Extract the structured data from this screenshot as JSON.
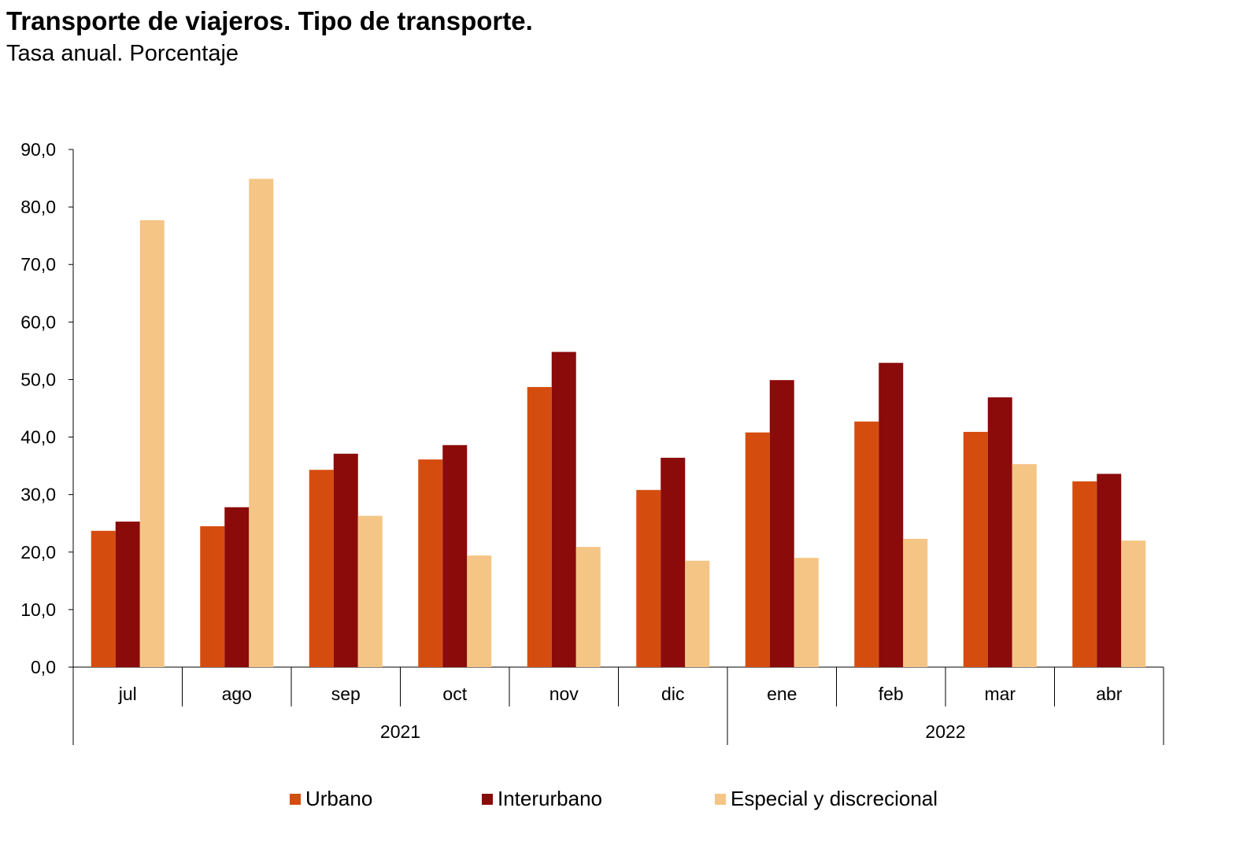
{
  "title": "Transporte de viajeros. Tipo de transporte.",
  "subtitle": "Tasa anual. Porcentaje",
  "chart_data": {
    "type": "bar",
    "title": "Transporte de viajeros. Tipo de transporte.",
    "subtitle": "Tasa anual. Porcentaje",
    "categories": [
      "jul",
      "ago",
      "sep",
      "oct",
      "nov",
      "dic",
      "ene",
      "feb",
      "mar",
      "abr"
    ],
    "groups": [
      {
        "label": "2021",
        "count": 6
      },
      {
        "label": "2022",
        "count": 4
      }
    ],
    "ylim": [
      0,
      90
    ],
    "yticks": [
      "0,0",
      "10,0",
      "20,0",
      "30,0",
      "40,0",
      "50,0",
      "60,0",
      "70,0",
      "80,0",
      "90,0"
    ],
    "grid": false,
    "legend": "bottom",
    "series": [
      {
        "name": "Urbano",
        "color": "#D54D0E",
        "values": [
          23.7,
          24.5,
          34.3,
          36.1,
          48.7,
          30.8,
          40.8,
          42.7,
          40.9,
          32.3
        ]
      },
      {
        "name": "Interurbano",
        "color": "#8B0A0A",
        "values": [
          25.3,
          27.8,
          37.1,
          38.6,
          54.8,
          36.4,
          49.9,
          52.9,
          46.9,
          33.6
        ]
      },
      {
        "name": "Especial y discrecional",
        "color": "#F5C585",
        "values": [
          77.7,
          84.9,
          26.3,
          19.4,
          20.9,
          18.5,
          19.0,
          22.3,
          35.3,
          22.0
        ]
      }
    ]
  }
}
